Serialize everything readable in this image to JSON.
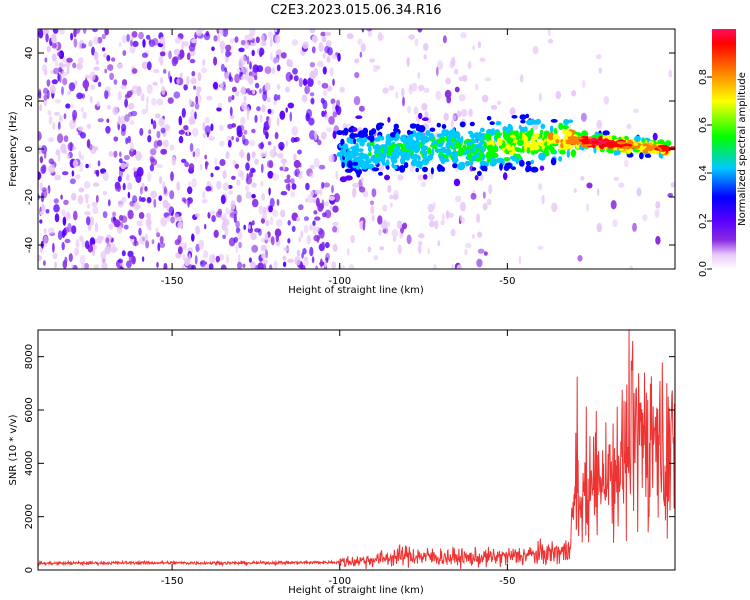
{
  "title": "C2E3.2023.015.06.34.R16",
  "colors": {
    "snr_line": "#ee3333",
    "colormap": [
      "#ffffff",
      "#e8c8f8",
      "#8a2be2",
      "#5a00ff",
      "#0000ff",
      "#00c8ff",
      "#00ff00",
      "#ffff00",
      "#ff8000",
      "#ff0000",
      "#ff1060"
    ]
  },
  "chart_data": [
    {
      "type": "heatmap",
      "title": "",
      "xlabel": "Height of straight line (km)",
      "ylabel": "Frequency (Hz)",
      "xlim": [
        -190,
        0
      ],
      "ylim": [
        -50,
        50
      ],
      "x_ticks": [
        -150,
        -100,
        -50
      ],
      "y_ticks": [
        -40,
        -20,
        0,
        20,
        40
      ],
      "colorbar": {
        "label": "Normalized spectral amplitude",
        "range": [
          0,
          1
        ],
        "ticks": [
          "0.0",
          "0.2",
          "0.4",
          "0.6",
          "0.8"
        ]
      },
      "features": {
        "noise_region_x": [
          -190,
          -100
        ],
        "signal_track": [
          {
            "x": -100,
            "freq": -2,
            "amp": 0.15
          },
          {
            "x": -90,
            "freq": -1,
            "amp": 0.25
          },
          {
            "x": -80,
            "freq": 0,
            "amp": 0.25
          },
          {
            "x": -70,
            "freq": 1,
            "amp": 0.3
          },
          {
            "x": -60,
            "freq": 0,
            "amp": 0.3
          },
          {
            "x": -50,
            "freq": 2,
            "amp": 0.45
          },
          {
            "x": -40,
            "freq": 3,
            "amp": 0.45
          },
          {
            "x": -32,
            "freq": 4,
            "amp": 0.65
          },
          {
            "x": -25,
            "freq": 3,
            "amp": 1.0
          },
          {
            "x": -18,
            "freq": 2,
            "amp": 0.95
          },
          {
            "x": -10,
            "freq": 1,
            "amp": 0.6
          },
          {
            "x": -2,
            "freq": 0,
            "amp": 0.9
          }
        ]
      }
    },
    {
      "type": "line",
      "title": "",
      "xlabel": "Height of straight line (km)",
      "ylabel": "SNR (10 * v/v)",
      "xlim": [
        -190,
        0
      ],
      "ylim": [
        0,
        9000
      ],
      "x_ticks": [
        -150,
        -100,
        -50
      ],
      "y_ticks": [
        0,
        2000,
        4000,
        6000,
        8000
      ],
      "series": [
        {
          "x": [
            -190,
            -160,
            -130,
            -100,
            -90,
            -80,
            -75,
            -70,
            -60,
            -50,
            -40,
            -32,
            -30,
            -25,
            -20,
            -15,
            -10,
            -8,
            -5,
            -2,
            0
          ],
          "values": [
            250,
            270,
            260,
            290,
            380,
            550,
            500,
            480,
            450,
            500,
            600,
            700,
            2200,
            3000,
            3800,
            4300,
            5000,
            5200,
            4700,
            4300,
            4500
          ]
        }
      ]
    }
  ]
}
